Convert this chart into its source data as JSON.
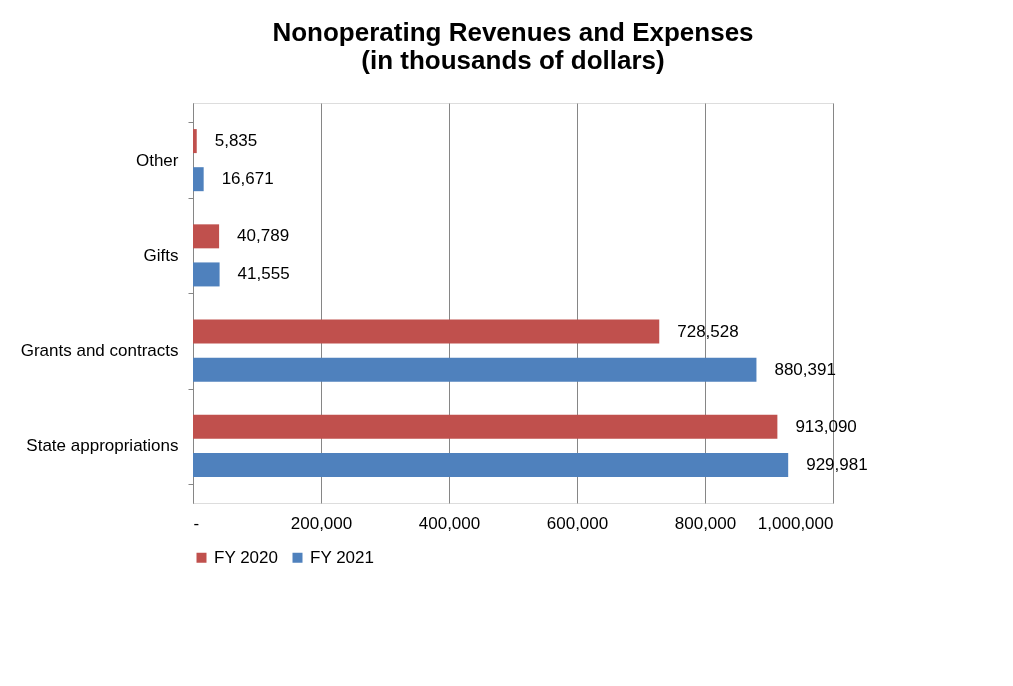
{
  "chart_data": {
    "type": "bar",
    "orientation": "horizontal",
    "title": "Nonoperating Revenues and Expenses\n(in thousands of dollars)",
    "categories": [
      "Other",
      "Gifts",
      "Grants and contracts",
      "State appropriations"
    ],
    "series": [
      {
        "name": "FY 2020",
        "color": "#c0504d",
        "values": [
          5835,
          40789,
          728528,
          913090
        ],
        "value_labels": [
          "5,835",
          "40,789",
          "728,528",
          "913,090"
        ]
      },
      {
        "name": "FY 2021",
        "color": "#4f81bd",
        "values": [
          16671,
          41555,
          880391,
          929981
        ],
        "value_labels": [
          "16,671",
          "41,555",
          "880,391",
          "929,981"
        ]
      }
    ],
    "xlim": [
      0,
      1000000
    ],
    "xticks": [
      {
        "value": 0,
        "label": "-"
      },
      {
        "value": 200000,
        "label": "200,000"
      },
      {
        "value": 400000,
        "label": "400,000"
      },
      {
        "value": 600000,
        "label": "600,000"
      },
      {
        "value": 800000,
        "label": "800,000"
      },
      {
        "value": 1000000,
        "label": "1,000,000"
      }
    ],
    "grid": "x",
    "legend": "bottom"
  }
}
